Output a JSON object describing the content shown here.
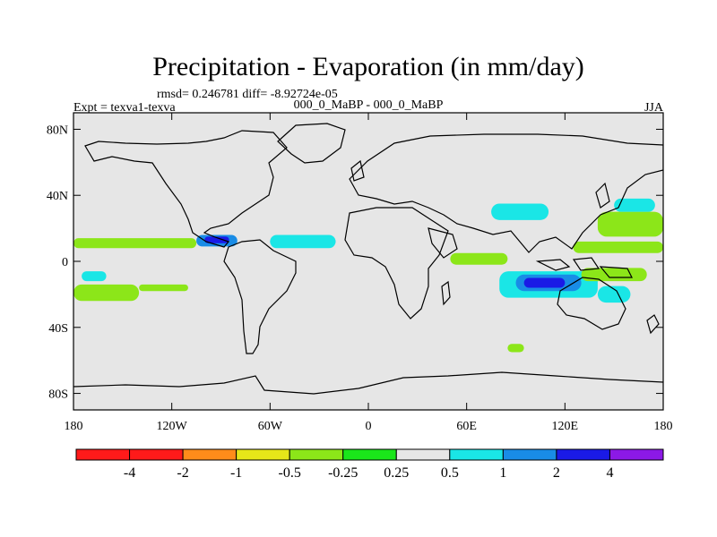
{
  "chart_data": {
    "type": "heatmap",
    "title": "Precipitation - Evaporation (in mm/day)",
    "stats": "rmsd= 0.246781  diff= -8.92724e-05",
    "left_label": "Expt = texva1-texva",
    "center_label": "000_0_MaBP - 000_0_MaBP",
    "right_label": "JJA",
    "xlabel": "",
    "ylabel": "",
    "xlim": [
      -180,
      180
    ],
    "ylim": [
      -90,
      90
    ],
    "x_ticks": [
      {
        "value": -180,
        "label": "180"
      },
      {
        "value": -120,
        "label": "120W"
      },
      {
        "value": -60,
        "label": "60W"
      },
      {
        "value": 0,
        "label": "0"
      },
      {
        "value": 60,
        "label": "60E"
      },
      {
        "value": 120,
        "label": "120E"
      },
      {
        "value": 180,
        "label": "180"
      }
    ],
    "y_ticks": [
      {
        "value": 80,
        "label": "80N"
      },
      {
        "value": 40,
        "label": "40N"
      },
      {
        "value": 0,
        "label": "0"
      },
      {
        "value": -40,
        "label": "40S"
      },
      {
        "value": -80,
        "label": "80S"
      }
    ],
    "levels": [
      -4,
      -2,
      -1,
      -0.5,
      -0.25,
      0.25,
      0.5,
      1,
      2,
      4
    ],
    "level_labels": [
      "-4",
      "-2",
      "-1",
      "-0.5",
      "-0.25",
      "0.25",
      "0.5",
      "1",
      "2",
      "4"
    ],
    "colors": [
      "#ff1a1a",
      "#ff8c1a",
      "#e6e619",
      "#8ce619",
      "#1ae61a",
      "#e6e6e6",
      "#1ae6e6",
      "#198ce6",
      "#1a1ae6",
      "#8c19e6"
    ],
    "background_color": "#e6e6e6",
    "anomaly_regions": [
      {
        "name": "east-pacific-itcz-band",
        "lon": [
          -180,
          -105
        ],
        "lat": [
          8,
          14
        ],
        "level": -0.5
      },
      {
        "name": "east-pacific-itcz-core",
        "lon": [
          -165,
          -120
        ],
        "lat": [
          10,
          13
        ],
        "level": -0.5
      },
      {
        "name": "central-america-wet",
        "lon": [
          -105,
          -80
        ],
        "lat": [
          9,
          16
        ],
        "level": 1
      },
      {
        "name": "central-america-wet-core",
        "lon": [
          -100,
          -85
        ],
        "lat": [
          11,
          15
        ],
        "level": 2
      },
      {
        "name": "atlantic-itcz",
        "lon": [
          -60,
          -20
        ],
        "lat": [
          10,
          14
        ],
        "level": 1
      },
      {
        "name": "atlantic-itcz-edge",
        "lon": [
          -60,
          -20
        ],
        "lat": [
          8,
          16
        ],
        "level": 0.5
      },
      {
        "name": "south-pacific-dry",
        "lon": [
          -180,
          -140
        ],
        "lat": [
          -24,
          -14
        ],
        "level": -0.5
      },
      {
        "name": "south-pacific-wet",
        "lon": [
          -175,
          -160
        ],
        "lat": [
          -12,
          -6
        ],
        "level": 0.5
      },
      {
        "name": "indian-ocean-wet",
        "lon": [
          80,
          140
        ],
        "lat": [
          -22,
          -6
        ],
        "level": 0.5
      },
      {
        "name": "indian-ocean-core",
        "lon": [
          90,
          130
        ],
        "lat": [
          -18,
          -8
        ],
        "level": 1
      },
      {
        "name": "indian-ocean-max",
        "lon": [
          95,
          120
        ],
        "lat": [
          -16,
          -10
        ],
        "level": 2
      },
      {
        "name": "bay-of-bengal-wet",
        "lon": [
          75,
          110
        ],
        "lat": [
          25,
          35
        ],
        "level": 0.5
      },
      {
        "name": "equatorial-indian-dry",
        "lon": [
          50,
          85
        ],
        "lat": [
          -2,
          5
        ],
        "level": -0.5
      },
      {
        "name": "west-pacific-dry",
        "lon": [
          125,
          180
        ],
        "lat": [
          5,
          12
        ],
        "level": -0.5
      },
      {
        "name": "north-pacific-dry",
        "lon": [
          140,
          180
        ],
        "lat": [
          15,
          30
        ],
        "level": -0.5
      },
      {
        "name": "north-pacific-wet",
        "lon": [
          150,
          175
        ],
        "lat": [
          30,
          38
        ],
        "level": 0.5
      },
      {
        "name": "southwest-pacific-dry",
        "lon": [
          130,
          170
        ],
        "lat": [
          -12,
          -4
        ],
        "level": -0.5
      },
      {
        "name": "southwest-pacific-wet",
        "lon": [
          140,
          160
        ],
        "lat": [
          -25,
          -15
        ],
        "level": 0.5
      },
      {
        "name": "southern-ocean-dry",
        "lon": [
          85,
          95
        ],
        "lat": [
          -55,
          -50
        ],
        "level": -0.5
      },
      {
        "name": "east-pacific-dry",
        "lon": [
          -140,
          -110
        ],
        "lat": [
          -18,
          -14
        ],
        "level": -0.5
      }
    ]
  }
}
